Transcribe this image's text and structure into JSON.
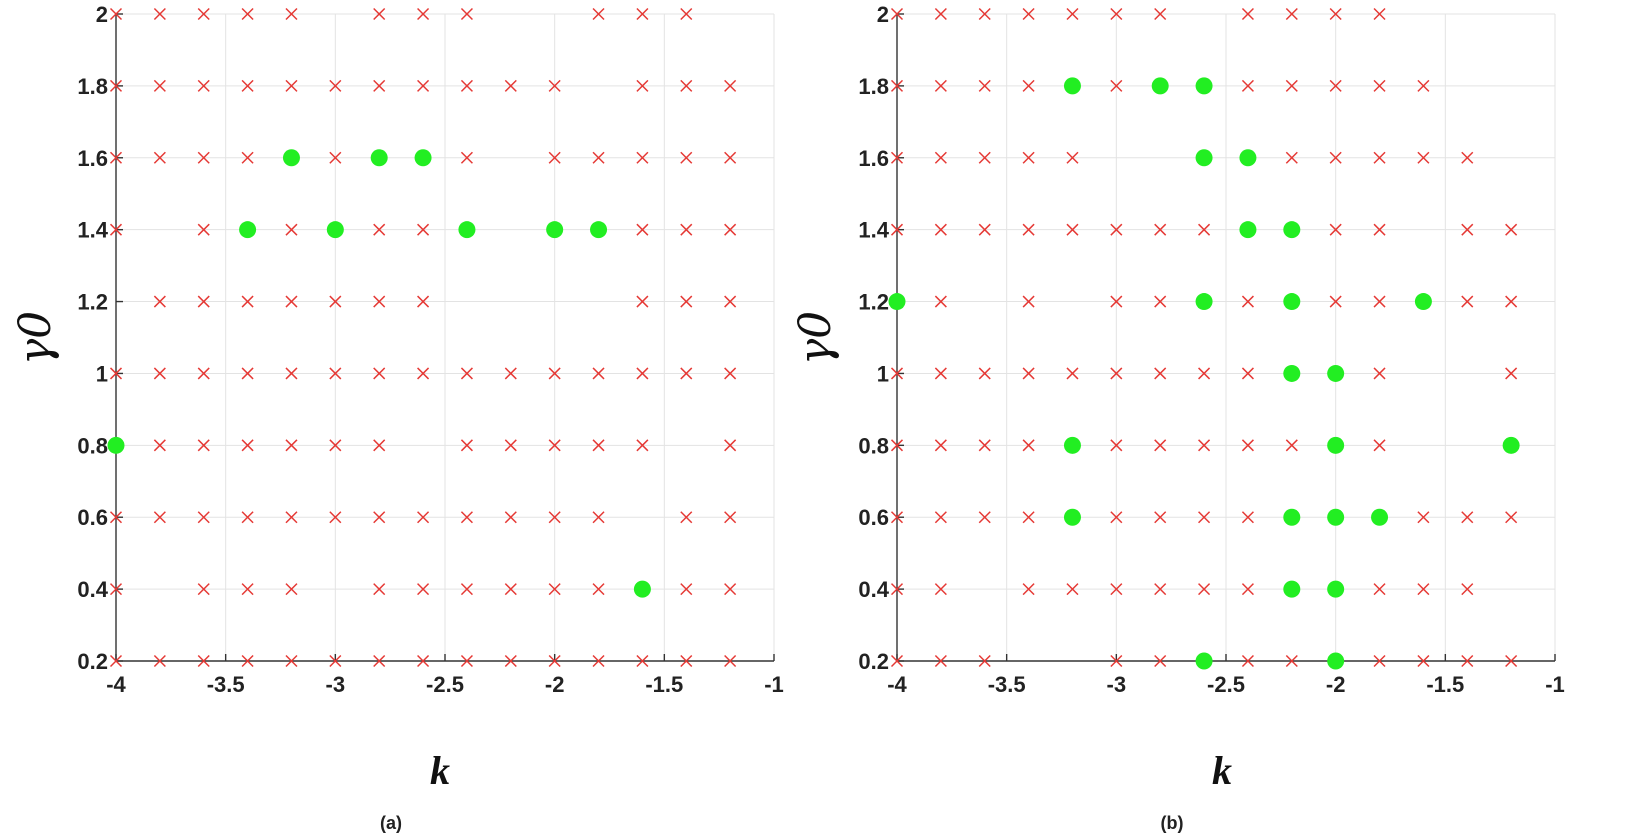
{
  "chart_data": [
    {
      "type": "scatter",
      "caption": "(a)",
      "xlabel": "k",
      "ylabel": "γ0",
      "xlim": [
        -4,
        -1
      ],
      "ylim": [
        0.2,
        2
      ],
      "xticks": [
        -4,
        -3.5,
        -3,
        -2.5,
        -2,
        -1.5,
        -1
      ],
      "xtick_labels": [
        "-4",
        "-3.5",
        "-3",
        "-2.5",
        "-2",
        "-1.5",
        "-1"
      ],
      "yticks": [
        0.2,
        0.4,
        0.6,
        0.8,
        1,
        1.2,
        1.4,
        1.6,
        1.8,
        2
      ],
      "ytick_labels": [
        "0.2",
        "0.4",
        "0.6",
        "0.8",
        "1",
        "1.2",
        "1.4",
        "1.6",
        "1.8",
        "2"
      ],
      "grid": true,
      "series": [
        {
          "marker": "x",
          "color": "#e53935",
          "points": [
            [
              -4,
              2
            ],
            [
              -3.8,
              2
            ],
            [
              -3.6,
              2
            ],
            [
              -3.4,
              2
            ],
            [
              -3.2,
              2
            ],
            [
              -2.8,
              2
            ],
            [
              -2.6,
              2
            ],
            [
              -2.4,
              2
            ],
            [
              -1.8,
              2
            ],
            [
              -1.6,
              2
            ],
            [
              -1.4,
              2
            ],
            [
              -4,
              1.8
            ],
            [
              -3.8,
              1.8
            ],
            [
              -3.6,
              1.8
            ],
            [
              -3.4,
              1.8
            ],
            [
              -3.2,
              1.8
            ],
            [
              -3,
              1.8
            ],
            [
              -2.8,
              1.8
            ],
            [
              -2.6,
              1.8
            ],
            [
              -2.4,
              1.8
            ],
            [
              -2.2,
              1.8
            ],
            [
              -2,
              1.8
            ],
            [
              -1.6,
              1.8
            ],
            [
              -1.4,
              1.8
            ],
            [
              -1.2,
              1.8
            ],
            [
              -4,
              1.6
            ],
            [
              -3.8,
              1.6
            ],
            [
              -3.6,
              1.6
            ],
            [
              -3.4,
              1.6
            ],
            [
              -3,
              1.6
            ],
            [
              -2.4,
              1.6
            ],
            [
              -2,
              1.6
            ],
            [
              -1.8,
              1.6
            ],
            [
              -1.6,
              1.6
            ],
            [
              -1.4,
              1.6
            ],
            [
              -1.2,
              1.6
            ],
            [
              -4,
              1.4
            ],
            [
              -3.6,
              1.4
            ],
            [
              -3.2,
              1.4
            ],
            [
              -2.8,
              1.4
            ],
            [
              -2.6,
              1.4
            ],
            [
              -1.6,
              1.4
            ],
            [
              -1.4,
              1.4
            ],
            [
              -1.2,
              1.4
            ],
            [
              -3.8,
              1.2
            ],
            [
              -3.6,
              1.2
            ],
            [
              -3.4,
              1.2
            ],
            [
              -3.2,
              1.2
            ],
            [
              -3,
              1.2
            ],
            [
              -2.8,
              1.2
            ],
            [
              -2.6,
              1.2
            ],
            [
              -1.6,
              1.2
            ],
            [
              -1.4,
              1.2
            ],
            [
              -1.2,
              1.2
            ],
            [
              -4,
              1
            ],
            [
              -3.8,
              1
            ],
            [
              -3.6,
              1
            ],
            [
              -3.4,
              1
            ],
            [
              -3.2,
              1
            ],
            [
              -3,
              1
            ],
            [
              -2.8,
              1
            ],
            [
              -2.6,
              1
            ],
            [
              -2.4,
              1
            ],
            [
              -2.2,
              1
            ],
            [
              -2,
              1
            ],
            [
              -1.8,
              1
            ],
            [
              -1.6,
              1
            ],
            [
              -1.4,
              1
            ],
            [
              -1.2,
              1
            ],
            [
              -3.8,
              0.8
            ],
            [
              -3.6,
              0.8
            ],
            [
              -3.4,
              0.8
            ],
            [
              -3.2,
              0.8
            ],
            [
              -3,
              0.8
            ],
            [
              -2.8,
              0.8
            ],
            [
              -2.4,
              0.8
            ],
            [
              -2.2,
              0.8
            ],
            [
              -2,
              0.8
            ],
            [
              -1.8,
              0.8
            ],
            [
              -1.6,
              0.8
            ],
            [
              -1.2,
              0.8
            ],
            [
              -4,
              0.6
            ],
            [
              -3.8,
              0.6
            ],
            [
              -3.6,
              0.6
            ],
            [
              -3.4,
              0.6
            ],
            [
              -3.2,
              0.6
            ],
            [
              -3,
              0.6
            ],
            [
              -2.8,
              0.6
            ],
            [
              -2.6,
              0.6
            ],
            [
              -2.4,
              0.6
            ],
            [
              -2.2,
              0.6
            ],
            [
              -2,
              0.6
            ],
            [
              -1.8,
              0.6
            ],
            [
              -1.4,
              0.6
            ],
            [
              -1.2,
              0.6
            ],
            [
              -4,
              0.4
            ],
            [
              -3.6,
              0.4
            ],
            [
              -3.4,
              0.4
            ],
            [
              -3.2,
              0.4
            ],
            [
              -2.8,
              0.4
            ],
            [
              -2.6,
              0.4
            ],
            [
              -2.4,
              0.4
            ],
            [
              -2.2,
              0.4
            ],
            [
              -2,
              0.4
            ],
            [
              -1.8,
              0.4
            ],
            [
              -1.4,
              0.4
            ],
            [
              -1.2,
              0.4
            ],
            [
              -4,
              0.2
            ],
            [
              -3.8,
              0.2
            ],
            [
              -3.6,
              0.2
            ],
            [
              -3.4,
              0.2
            ],
            [
              -3.2,
              0.2
            ],
            [
              -3,
              0.2
            ],
            [
              -2.8,
              0.2
            ],
            [
              -2.6,
              0.2
            ],
            [
              -2.4,
              0.2
            ],
            [
              -2.2,
              0.2
            ],
            [
              -2,
              0.2
            ],
            [
              -1.8,
              0.2
            ],
            [
              -1.6,
              0.2
            ],
            [
              -1.4,
              0.2
            ],
            [
              -1.2,
              0.2
            ]
          ]
        },
        {
          "marker": "o",
          "color": "#22ee22",
          "points": [
            [
              -3.2,
              1.6
            ],
            [
              -2.8,
              1.6
            ],
            [
              -2.6,
              1.6
            ],
            [
              -3.4,
              1.4
            ],
            [
              -3,
              1.4
            ],
            [
              -2.4,
              1.4
            ],
            [
              -2,
              1.4
            ],
            [
              -1.8,
              1.4
            ],
            [
              -4,
              0.8
            ],
            [
              -1.6,
              0.4
            ]
          ]
        }
      ]
    },
    {
      "type": "scatter",
      "caption": "(b)",
      "xlabel": "k",
      "ylabel": "γ0",
      "xlim": [
        -4,
        -1
      ],
      "ylim": [
        0.2,
        2
      ],
      "xticks": [
        -4,
        -3.5,
        -3,
        -2.5,
        -2,
        -1.5,
        -1
      ],
      "xtick_labels": [
        "-4",
        "-3.5",
        "-3",
        "-2.5",
        "-2",
        "-1.5",
        "-1"
      ],
      "yticks": [
        0.2,
        0.4,
        0.6,
        0.8,
        1,
        1.2,
        1.4,
        1.6,
        1.8,
        2
      ],
      "ytick_labels": [
        "0.2",
        "0.4",
        "0.6",
        "0.8",
        "1",
        "1.2",
        "1.4",
        "1.6",
        "1.8",
        "2"
      ],
      "grid": true,
      "series": [
        {
          "marker": "x",
          "color": "#e53935",
          "points": [
            [
              -4,
              2
            ],
            [
              -3.8,
              2
            ],
            [
              -3.6,
              2
            ],
            [
              -3.4,
              2
            ],
            [
              -3.2,
              2
            ],
            [
              -3,
              2
            ],
            [
              -2.8,
              2
            ],
            [
              -2.4,
              2
            ],
            [
              -2.2,
              2
            ],
            [
              -2,
              2
            ],
            [
              -1.8,
              2
            ],
            [
              -4,
              1.8
            ],
            [
              -3.8,
              1.8
            ],
            [
              -3.6,
              1.8
            ],
            [
              -3.4,
              1.8
            ],
            [
              -3,
              1.8
            ],
            [
              -2.4,
              1.8
            ],
            [
              -2.2,
              1.8
            ],
            [
              -2,
              1.8
            ],
            [
              -1.8,
              1.8
            ],
            [
              -1.6,
              1.8
            ],
            [
              -4,
              1.6
            ],
            [
              -3.8,
              1.6
            ],
            [
              -3.6,
              1.6
            ],
            [
              -3.4,
              1.6
            ],
            [
              -3.2,
              1.6
            ],
            [
              -2.2,
              1.6
            ],
            [
              -2,
              1.6
            ],
            [
              -1.8,
              1.6
            ],
            [
              -1.6,
              1.6
            ],
            [
              -1.4,
              1.6
            ],
            [
              -4,
              1.4
            ],
            [
              -3.8,
              1.4
            ],
            [
              -3.6,
              1.4
            ],
            [
              -3.4,
              1.4
            ],
            [
              -3.2,
              1.4
            ],
            [
              -3,
              1.4
            ],
            [
              -2.8,
              1.4
            ],
            [
              -2.6,
              1.4
            ],
            [
              -2,
              1.4
            ],
            [
              -1.8,
              1.4
            ],
            [
              -1.4,
              1.4
            ],
            [
              -1.2,
              1.4
            ],
            [
              -3.8,
              1.2
            ],
            [
              -3.4,
              1.2
            ],
            [
              -3,
              1.2
            ],
            [
              -2.8,
              1.2
            ],
            [
              -2.4,
              1.2
            ],
            [
              -2,
              1.2
            ],
            [
              -1.8,
              1.2
            ],
            [
              -1.4,
              1.2
            ],
            [
              -1.2,
              1.2
            ],
            [
              -4,
              1
            ],
            [
              -3.8,
              1
            ],
            [
              -3.6,
              1
            ],
            [
              -3.4,
              1
            ],
            [
              -3.2,
              1
            ],
            [
              -3,
              1
            ],
            [
              -2.8,
              1
            ],
            [
              -2.6,
              1
            ],
            [
              -2.4,
              1
            ],
            [
              -1.8,
              1
            ],
            [
              -1.2,
              1
            ],
            [
              -4,
              0.8
            ],
            [
              -3.8,
              0.8
            ],
            [
              -3.6,
              0.8
            ],
            [
              -3.4,
              0.8
            ],
            [
              -3,
              0.8
            ],
            [
              -2.8,
              0.8
            ],
            [
              -2.6,
              0.8
            ],
            [
              -2.4,
              0.8
            ],
            [
              -2.2,
              0.8
            ],
            [
              -1.8,
              0.8
            ],
            [
              -4,
              0.6
            ],
            [
              -3.8,
              0.6
            ],
            [
              -3.6,
              0.6
            ],
            [
              -3.4,
              0.6
            ],
            [
              -3,
              0.6
            ],
            [
              -2.8,
              0.6
            ],
            [
              -2.6,
              0.6
            ],
            [
              -2.4,
              0.6
            ],
            [
              -1.6,
              0.6
            ],
            [
              -1.4,
              0.6
            ],
            [
              -1.2,
              0.6
            ],
            [
              -4,
              0.4
            ],
            [
              -3.8,
              0.4
            ],
            [
              -3.4,
              0.4
            ],
            [
              -3.2,
              0.4
            ],
            [
              -3,
              0.4
            ],
            [
              -2.8,
              0.4
            ],
            [
              -2.6,
              0.4
            ],
            [
              -2.4,
              0.4
            ],
            [
              -1.8,
              0.4
            ],
            [
              -1.6,
              0.4
            ],
            [
              -1.4,
              0.4
            ],
            [
              -4,
              0.2
            ],
            [
              -3.8,
              0.2
            ],
            [
              -3.6,
              0.2
            ],
            [
              -3,
              0.2
            ],
            [
              -2.8,
              0.2
            ],
            [
              -2.4,
              0.2
            ],
            [
              -2.2,
              0.2
            ],
            [
              -1.8,
              0.2
            ],
            [
              -1.6,
              0.2
            ],
            [
              -1.4,
              0.2
            ],
            [
              -1.2,
              0.2
            ]
          ]
        },
        {
          "marker": "o",
          "color": "#22ee22",
          "points": [
            [
              -3.2,
              1.8
            ],
            [
              -2.8,
              1.8
            ],
            [
              -2.6,
              1.8
            ],
            [
              -2.6,
              1.6
            ],
            [
              -2.4,
              1.6
            ],
            [
              -2.4,
              1.4
            ],
            [
              -2.2,
              1.4
            ],
            [
              -4,
              1.2
            ],
            [
              -2.6,
              1.2
            ],
            [
              -2.2,
              1.2
            ],
            [
              -1.6,
              1.2
            ],
            [
              -2.2,
              1
            ],
            [
              -2,
              1
            ],
            [
              -3.2,
              0.8
            ],
            [
              -2,
              0.8
            ],
            [
              -1.2,
              0.8
            ],
            [
              -3.2,
              0.6
            ],
            [
              -2.2,
              0.6
            ],
            [
              -2,
              0.6
            ],
            [
              -1.8,
              0.6
            ],
            [
              -2.2,
              0.4
            ],
            [
              -2,
              0.4
            ],
            [
              -2.6,
              0.2
            ],
            [
              -2,
              0.2
            ]
          ]
        }
      ]
    }
  ]
}
